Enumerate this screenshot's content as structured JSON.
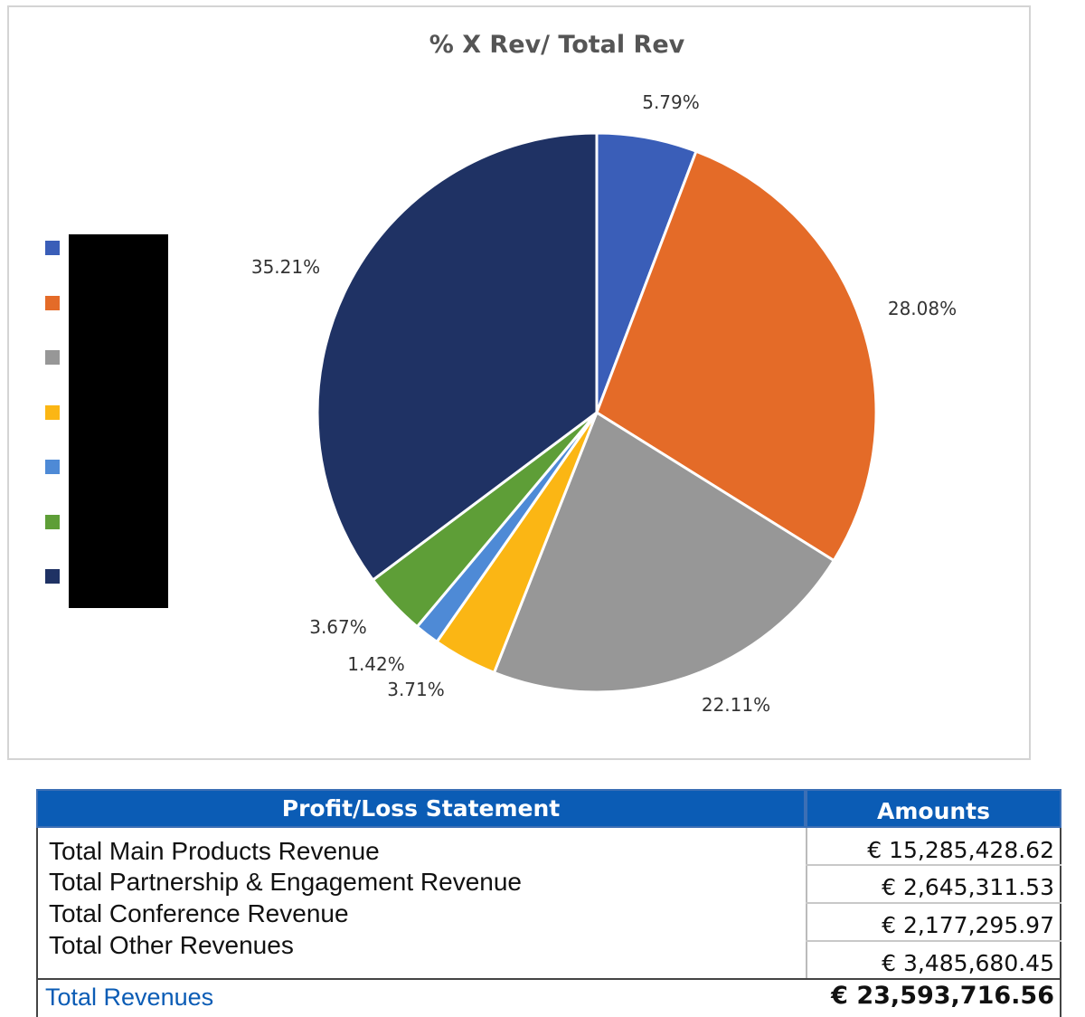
{
  "chart_data": {
    "type": "pie",
    "title": "% X Rev/ Total Rev",
    "start_angle_deg": 0,
    "direction": "clockwise",
    "slices": [
      {
        "label": "",
        "value": 5.79,
        "display": "5.79%",
        "color": "#3a5eb8"
      },
      {
        "label": "",
        "value": 28.08,
        "display": "28.08%",
        "color": "#e46b28"
      },
      {
        "label": "",
        "value": 22.11,
        "display": "22.11%",
        "color": "#979797"
      },
      {
        "label": "",
        "value": 3.71,
        "display": "3.71%",
        "color": "#fbb614"
      },
      {
        "label": "",
        "value": 1.42,
        "display": "1.42%",
        "color": "#4e8ad6"
      },
      {
        "label": "",
        "value": 3.67,
        "display": "3.67%",
        "color": "#5e9e37"
      },
      {
        "label": "",
        "value": 35.21,
        "display": "35.21%",
        "color": "#1f3264"
      }
    ],
    "legend": {
      "placement": "left",
      "labels_redacted": true
    }
  },
  "statement": {
    "header_title": "Profit/Loss Statement",
    "header_amounts": "Amounts",
    "header_color": "#0b5cb5",
    "rows": [
      {
        "label": "Total Main Products Revenue",
        "amount": "€ 15,285,428.62"
      },
      {
        "label": "Total Partnership & Engagement Revenue",
        "amount": "€ 2,645,311.53"
      },
      {
        "label": "Total Conference Revenue",
        "amount": "€ 2,177,295.97"
      },
      {
        "label": "Total Other Revenues",
        "amount": "€ 3,485,680.45"
      }
    ],
    "total_label": "Total Revenues",
    "total_amount": "€ 23,593,716.56"
  }
}
